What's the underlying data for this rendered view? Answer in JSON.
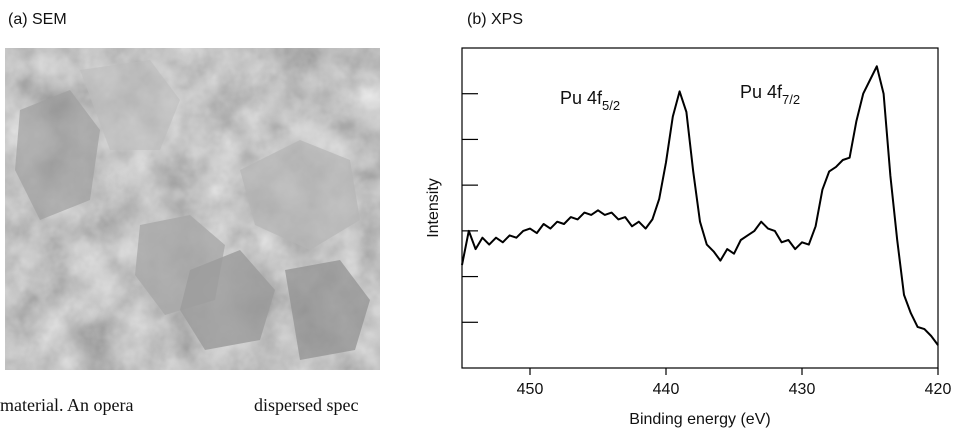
{
  "figure": {
    "panel_a_label": "(a)  SEM",
    "panel_b_label": "(b)  XPS",
    "caption_fragment": [
      "material.  An opera",
      "dispersed spec"
    ]
  },
  "chart_data": {
    "type": "line",
    "xlabel": "Binding energy (eV)",
    "ylabel": "Intensity",
    "annotations": [
      {
        "text": "Pu 4f",
        "subscript": "5/2"
      },
      {
        "text": "Pu 4f",
        "subscript": "7/2"
      }
    ],
    "x": [
      455,
      454.5,
      454,
      453.5,
      453,
      452.5,
      452,
      451.5,
      451,
      450.5,
      450,
      449.5,
      449,
      448.5,
      448,
      447.5,
      447,
      446.5,
      446,
      445.5,
      445,
      444.5,
      444,
      443.5,
      443,
      442.5,
      442,
      441.5,
      441,
      440.5,
      440,
      439.5,
      439,
      438.5,
      438,
      437.5,
      437,
      436.5,
      436,
      435.5,
      435,
      434.5,
      434,
      433.5,
      433,
      432.5,
      432,
      431.5,
      431,
      430.5,
      430,
      429.5,
      429,
      428.5,
      428,
      427.5,
      427,
      426.5,
      426,
      425.5,
      425,
      424.5,
      424,
      423.5,
      423,
      422.5,
      422,
      421.5,
      421,
      420.5,
      420
    ],
    "series": [
      {
        "color": "#000000",
        "values": [
          2.25,
          3.0,
          2.6,
          2.85,
          2.7,
          2.85,
          2.75,
          2.9,
          2.85,
          3.0,
          3.05,
          2.95,
          3.15,
          3.05,
          3.2,
          3.15,
          3.3,
          3.25,
          3.4,
          3.35,
          3.45,
          3.35,
          3.4,
          3.25,
          3.3,
          3.1,
          3.2,
          3.05,
          3.25,
          3.7,
          4.5,
          5.5,
          6.05,
          5.6,
          4.3,
          3.2,
          2.7,
          2.55,
          2.35,
          2.6,
          2.5,
          2.8,
          2.9,
          3.0,
          3.2,
          3.05,
          3.0,
          2.75,
          2.8,
          2.6,
          2.75,
          2.7,
          3.1,
          3.9,
          4.3,
          4.4,
          4.55,
          4.6,
          5.4,
          6.0,
          6.3,
          6.6,
          6.0,
          4.2,
          2.8,
          1.6,
          1.2,
          0.9,
          0.85,
          0.7,
          0.5
        ]
      }
    ],
    "xlim": [
      455,
      420
    ],
    "xticks": [
      450,
      440,
      430,
      420
    ],
    "ylim": [
      0,
      7
    ],
    "yticks": [
      1,
      2,
      3,
      4,
      5,
      6
    ]
  }
}
